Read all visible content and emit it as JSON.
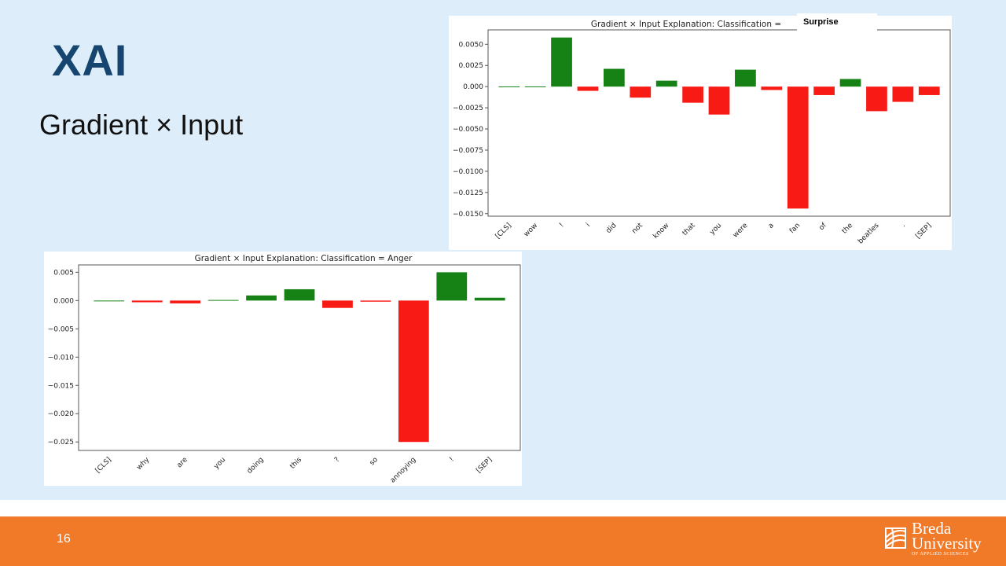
{
  "slide": {
    "title": "XAI",
    "subtitle": "Gradient × Input",
    "page_number": "16",
    "surprise_label": "Surprise",
    "logo": {
      "line1": "Breda",
      "line2": "University",
      "line3": "OF APPLIED SCIENCES"
    }
  },
  "colors": {
    "positive": "#168216",
    "negative": "#f81a14",
    "footer": "#f07a28",
    "title": "#16466f",
    "background": "#ddeefa"
  },
  "chart_data": [
    {
      "type": "bar",
      "title": "Gradient × Input Explanation: Classification = ",
      "categories": [
        "[CLS]",
        "wow",
        "!",
        "i",
        "did",
        "not",
        "know",
        "that",
        "you",
        "were",
        "a",
        "fan",
        "of",
        "the",
        "beatles",
        ".",
        "[SEP]"
      ],
      "values": [
        2e-05,
        2e-05,
        0.0058,
        -0.0005,
        0.0021,
        -0.0013,
        0.0007,
        -0.0019,
        -0.0033,
        0.002,
        -0.0004,
        -0.0144,
        -0.001,
        0.0009,
        -0.0029,
        -0.0018,
        -0.001
      ],
      "yticks": [
        0.005,
        0.0025,
        0.0,
        -0.0025,
        -0.005,
        -0.0075,
        -0.01,
        -0.0125,
        -0.015
      ],
      "ytick_labels": [
        "0.0050",
        "0.0025",
        "0.000",
        "−0.0025",
        "−0.0050",
        "−0.0075",
        "−0.0100",
        "−0.0125",
        "−0.0150"
      ],
      "ylim": [
        -0.0153,
        0.0067
      ],
      "grid": false
    },
    {
      "type": "bar",
      "title": "Gradient × Input Explanation: Classification = Anger",
      "categories": [
        "[CLS]",
        "why",
        "are",
        "you",
        "doing",
        "this",
        "?",
        "so",
        "annoying",
        "!",
        "[SEP]"
      ],
      "values": [
        0,
        -0.0003,
        -0.0005,
        0.0001,
        0.0009,
        0.002,
        -0.0013,
        -0.0002,
        -0.025,
        0.005,
        0.0005
      ],
      "yticks": [
        0.005,
        0.0,
        -0.005,
        -0.01,
        -0.015,
        -0.02,
        -0.025
      ],
      "ytick_labels": [
        "0.005",
        "0.000",
        "−0.005",
        "−0.010",
        "−0.015",
        "−0.020",
        "−0.025"
      ],
      "ylim": [
        -0.0265,
        0.0063
      ],
      "grid": false
    }
  ]
}
